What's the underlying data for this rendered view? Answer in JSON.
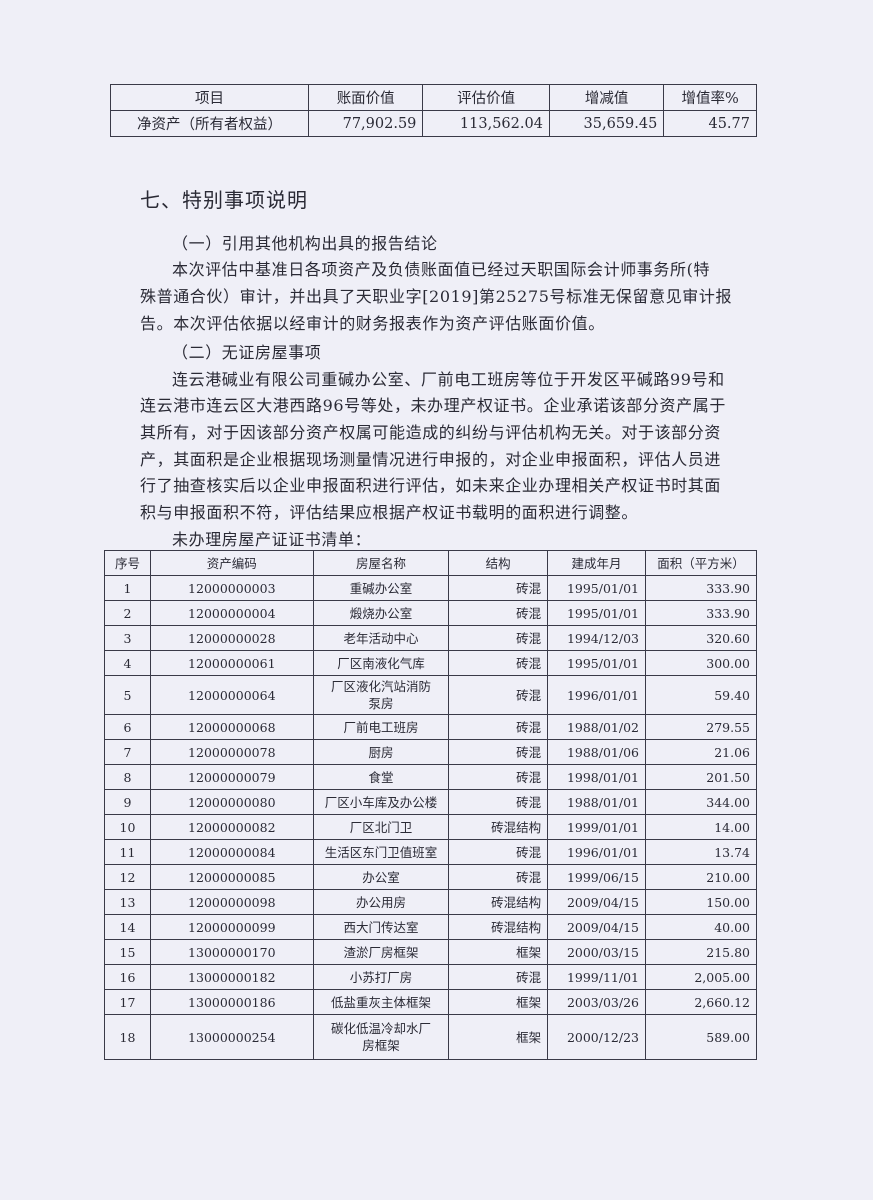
{
  "summary_table": {
    "headers": [
      "项目",
      "账面价值",
      "评估价值",
      "增减值",
      "增值率%"
    ],
    "row": [
      "净资产（所有者权益）",
      "77,902.59",
      "113,562.04",
      "35,659.45",
      "45.77"
    ]
  },
  "section_title": "七、特别事项说明",
  "sub1": {
    "title": "（一）引用其他机构出具的报告结论",
    "lines": [
      "本次评估中基准日各项资产及负债账面值已经过天职国际会计师事务所(特",
      "殊普通合伙）审计，并出具了天职业字[2019]第25275号标准无保留意见审计报",
      "告。本次评估依据以经审计的财务报表作为资产评估账面价值。"
    ]
  },
  "sub2": {
    "title": "（二）无证房屋事项",
    "lines": [
      "连云港碱业有限公司重碱办公室、厂前电工班房等位于开发区平碱路99号和",
      "连云港市连云区大港西路96号等处，未办理产权证书。企业承诺该部分资产属于",
      "其所有，对于因该部分资产权属可能造成的纠纷与评估机构无关。对于该部分资",
      "产，其面积是企业根据现场测量情况进行申报的，对企业申报面积，评估人员进",
      "行了抽查核实后以企业申报面积进行评估，如未来企业办理相关产权证书时其面",
      "积与申报面积不符，评估结果应根据产权证书载明的面积进行调整。"
    ],
    "list_caption": "未办理房屋产证证书清单："
  },
  "houses_table": {
    "headers": [
      "序号",
      "资产编码",
      "房屋名称",
      "结构",
      "建成年月",
      "面积（平方米）"
    ],
    "rows": [
      [
        "1",
        "12000000003",
        "重碱办公室",
        "砖混",
        "1995/01/01",
        "333.90"
      ],
      [
        "2",
        "12000000004",
        "煅烧办公室",
        "砖混",
        "1995/01/01",
        "333.90"
      ],
      [
        "3",
        "12000000028",
        "老年活动中心",
        "砖混",
        "1994/12/03",
        "320.60"
      ],
      [
        "4",
        "12000000061",
        "厂区南液化气库",
        "砖混",
        "1995/01/01",
        "300.00"
      ],
      [
        "5",
        "12000000064",
        "厂区液化汽站消防泵房",
        "砖混",
        "1996/01/01",
        "59.40"
      ],
      [
        "6",
        "12000000068",
        "厂前电工班房",
        "砖混",
        "1988/01/02",
        "279.55"
      ],
      [
        "7",
        "12000000078",
        "厨房",
        "砖混",
        "1988/01/06",
        "21.06"
      ],
      [
        "8",
        "12000000079",
        "食堂",
        "砖混",
        "1998/01/01",
        "201.50"
      ],
      [
        "9",
        "12000000080",
        "厂区小车库及办公楼",
        "砖混",
        "1988/01/01",
        "344.00"
      ],
      [
        "10",
        "12000000082",
        "厂区北门卫",
        "砖混结构",
        "1999/01/01",
        "14.00"
      ],
      [
        "11",
        "12000000084",
        "生活区东门卫值班室",
        "砖混",
        "1996/01/01",
        "13.74"
      ],
      [
        "12",
        "12000000085",
        "办公室",
        "砖混",
        "1999/06/15",
        "210.00"
      ],
      [
        "13",
        "12000000098",
        "办公用房",
        "砖混结构",
        "2009/04/15",
        "150.00"
      ],
      [
        "14",
        "12000000099",
        "西大门传达室",
        "砖混结构",
        "2009/04/15",
        "40.00"
      ],
      [
        "15",
        "13000000170",
        "渣淤厂房框架",
        "框架",
        "2000/03/15",
        "215.80"
      ],
      [
        "16",
        "13000000182",
        "小苏打厂房",
        "砖混",
        "1999/11/01",
        "2,005.00"
      ],
      [
        "17",
        "13000000186",
        "低盐重灰主体框架",
        "框架",
        "2003/03/26",
        "2,660.12"
      ],
      [
        "18",
        "13000000254",
        "碳化低温冷却水厂房框架",
        "框架",
        "2000/12/23",
        "589.00"
      ]
    ]
  }
}
